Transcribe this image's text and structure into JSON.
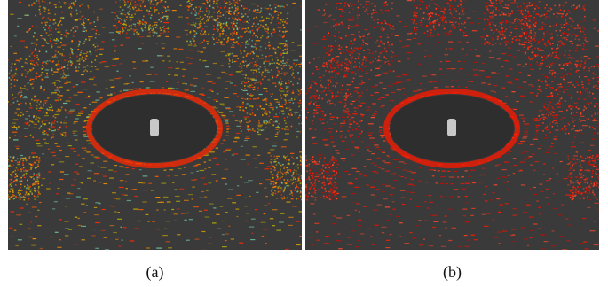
{
  "panels": [
    {
      "id": "a",
      "caption": "(a)",
      "coloring": "height-colored"
    },
    {
      "id": "b",
      "caption": "(b)",
      "coloring": "intensity-colored"
    }
  ],
  "colors": {
    "background": "#3a3a3a",
    "blind_spot": "#2e2e2e",
    "vehicle": "#c8c8c8",
    "palette_a": [
      "#ff2a00",
      "#ff5a00",
      "#ff8c00",
      "#d8a000",
      "#b8b000",
      "#6fc0a0"
    ],
    "palette_b": [
      "#ff1a00",
      "#e81000",
      "#ff3b1a",
      "#c80a00",
      "#ff4a2a"
    ]
  }
}
